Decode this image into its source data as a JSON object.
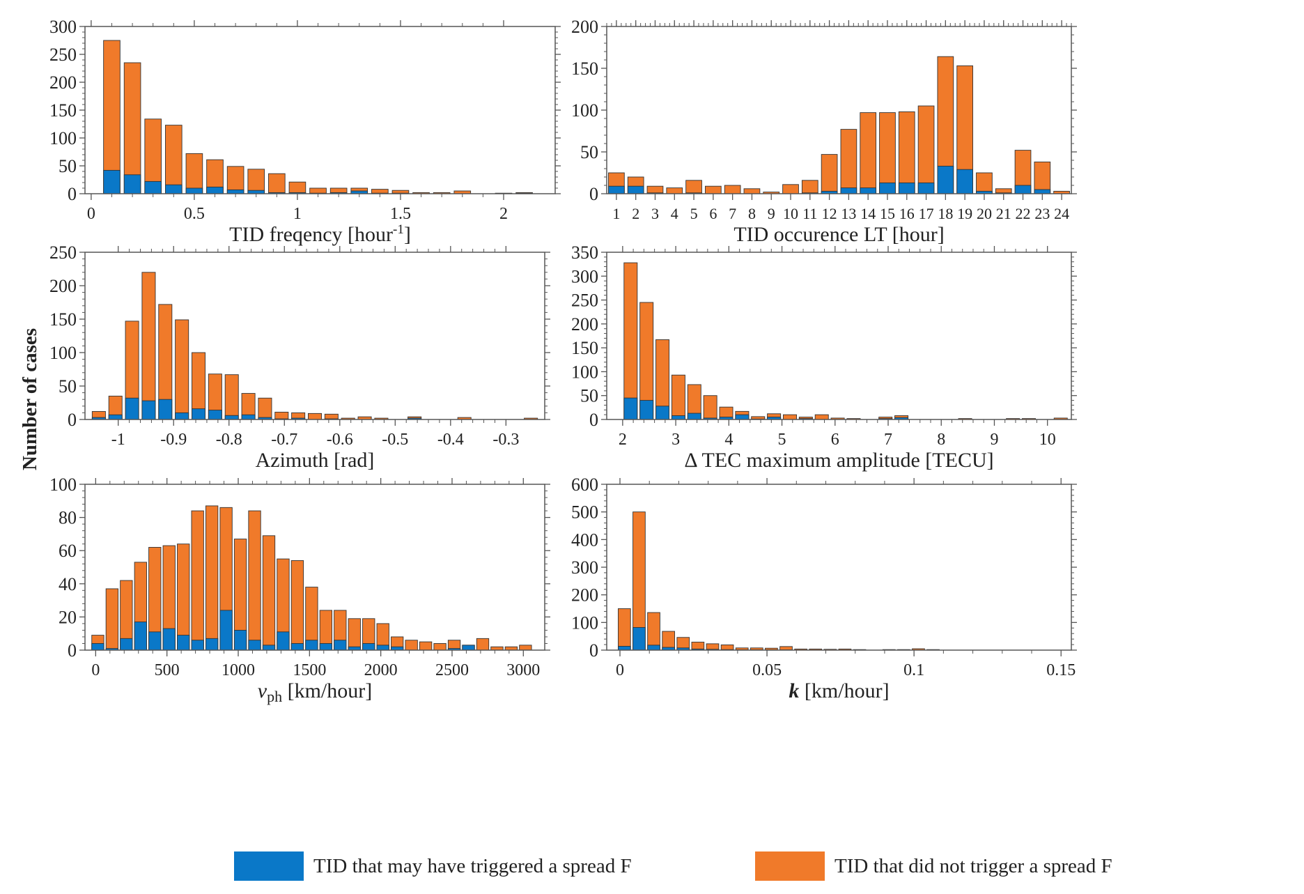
{
  "colors": {
    "spread_f": "#0a78c8",
    "no_spread_f": "#f07a2a",
    "axis": "#555555"
  },
  "ylabel": "Number of cases",
  "legend": {
    "triggered": "TID that may have triggered a spread F",
    "not_triggered": "TID that did not trigger a spread F"
  },
  "chart_data": [
    {
      "type": "bar",
      "stacked": true,
      "title": "",
      "xlabel": "TID freqency [hour",
      "xlabel_sup": "-1",
      "xlabel_end": "]",
      "xlim": [
        -0.03,
        2.25
      ],
      "ylim": [
        0,
        300
      ],
      "xticks": [
        0,
        0.5,
        1,
        1.5,
        2
      ],
      "xtick_labels": [
        "0",
        "0.5",
        "1",
        "1.5",
        "2"
      ],
      "yticks": [
        0,
        50,
        100,
        150,
        200,
        250,
        300
      ],
      "bar_width": 0.08,
      "x": [
        0.1,
        0.2,
        0.3,
        0.4,
        0.5,
        0.6,
        0.7,
        0.8,
        0.9,
        1.0,
        1.1,
        1.2,
        1.3,
        1.4,
        1.5,
        1.6,
        1.7,
        1.8,
        2.0,
        2.1
      ],
      "series": [
        {
          "name": "TID that may have triggered a spread F",
          "values": [
            42,
            34,
            22,
            16,
            10,
            12,
            7,
            6,
            2,
            2,
            1,
            2,
            5,
            1,
            1,
            0,
            0,
            0,
            0,
            1
          ]
        },
        {
          "name": "TID that did not trigger a spread F",
          "values": [
            233,
            201,
            112,
            107,
            62,
            49,
            42,
            38,
            34,
            19,
            9,
            8,
            5,
            7,
            5,
            2,
            2,
            5,
            1,
            1
          ]
        }
      ]
    },
    {
      "type": "bar",
      "stacked": true,
      "title": "",
      "xlabel": "TID occurence LT [hour]",
      "xlim": [
        0.5,
        24.5
      ],
      "ylim": [
        0,
        200
      ],
      "xticks": [
        1,
        2,
        3,
        4,
        5,
        6,
        7,
        8,
        9,
        10,
        11,
        12,
        13,
        14,
        15,
        16,
        17,
        18,
        19,
        20,
        21,
        22,
        23,
        24
      ],
      "xtick_labels": [
        "1",
        "2",
        "3",
        "4",
        "5",
        "6",
        "7",
        "8",
        "9",
        "10",
        "11",
        "12",
        "13",
        "14",
        "15",
        "16",
        "17",
        "18",
        "19",
        "20",
        "21",
        "22",
        "23",
        "24"
      ],
      "yticks": [
        0,
        50,
        100,
        150,
        200
      ],
      "bar_width": 0.82,
      "x": [
        1,
        2,
        3,
        4,
        5,
        6,
        7,
        8,
        9,
        10,
        11,
        12,
        13,
        14,
        15,
        16,
        17,
        18,
        19,
        20,
        21,
        22,
        23,
        24
      ],
      "series": [
        {
          "name": "TID that may have triggered a spread F",
          "values": [
            9,
            9,
            1,
            0,
            1,
            0,
            0,
            0,
            0,
            0,
            1,
            3,
            7,
            7,
            13,
            13,
            13,
            33,
            29,
            3,
            1,
            10,
            5,
            0
          ]
        },
        {
          "name": "TID that did not trigger a spread F",
          "values": [
            16,
            11,
            8,
            7,
            15,
            9,
            10,
            6,
            2,
            11,
            15,
            44,
            70,
            90,
            84,
            85,
            92,
            131,
            124,
            22,
            5,
            42,
            33,
            3
          ]
        }
      ]
    },
    {
      "type": "bar",
      "stacked": true,
      "title": "",
      "xlabel": "Azimuth [rad]",
      "xlim": [
        -1.06,
        -0.23
      ],
      "ylim": [
        0,
        250
      ],
      "xticks": [
        -1,
        -0.9,
        -0.8,
        -0.7,
        -0.6,
        -0.5,
        -0.4,
        -0.3
      ],
      "xtick_labels": [
        "-1",
        "-0.9",
        "-0.8",
        "-0.7",
        "-0.6",
        "-0.5",
        "-0.4",
        "-0.3"
      ],
      "yticks": [
        0,
        50,
        100,
        150,
        200,
        250
      ],
      "bar_width": 0.024,
      "x": [
        -1.035,
        -1.005,
        -0.975,
        -0.945,
        -0.915,
        -0.885,
        -0.855,
        -0.825,
        -0.795,
        -0.765,
        -0.735,
        -0.705,
        -0.675,
        -0.645,
        -0.615,
        -0.585,
        -0.555,
        -0.525,
        -0.465,
        -0.375,
        -0.255
      ],
      "series": [
        {
          "name": "TID that may have triggered a spread F",
          "values": [
            3,
            7,
            32,
            28,
            30,
            10,
            16,
            14,
            6,
            7,
            3,
            1,
            2,
            0,
            1,
            0,
            0,
            0,
            2,
            0,
            0
          ]
        },
        {
          "name": "TID that did not trigger a spread F",
          "values": [
            9,
            28,
            115,
            192,
            142,
            139,
            84,
            54,
            61,
            32,
            29,
            10,
            8,
            9,
            7,
            2,
            4,
            2,
            2,
            3,
            2
          ]
        }
      ]
    },
    {
      "type": "bar",
      "stacked": true,
      "title": "",
      "xlabel": "Δ TEC maximum amplitude [TECU]",
      "xlim": [
        1.7,
        10.45
      ],
      "ylim": [
        0,
        350
      ],
      "xticks": [
        2,
        3,
        4,
        5,
        6,
        7,
        8,
        9,
        10
      ],
      "xtick_labels": [
        "2",
        "3",
        "4",
        "5",
        "6",
        "7",
        "8",
        "9",
        "10"
      ],
      "yticks": [
        0,
        50,
        100,
        150,
        200,
        250,
        300,
        350
      ],
      "bar_width": 0.25,
      "x": [
        2.15,
        2.45,
        2.75,
        3.05,
        3.35,
        3.65,
        3.95,
        4.25,
        4.55,
        4.85,
        5.15,
        5.45,
        5.75,
        6.05,
        6.35,
        6.95,
        7.25,
        8.45,
        9.35,
        9.65,
        10.25
      ],
      "series": [
        {
          "name": "TID that may have triggered a spread F",
          "values": [
            45,
            40,
            28,
            8,
            13,
            3,
            5,
            10,
            1,
            5,
            0,
            2,
            0,
            0,
            0,
            2,
            4,
            0,
            0,
            0,
            0
          ]
        },
        {
          "name": "TID that did not trigger a spread F",
          "values": [
            283,
            205,
            139,
            85,
            60,
            47,
            21,
            7,
            5,
            7,
            10,
            3,
            10,
            3,
            2,
            3,
            4,
            2,
            2,
            2,
            3
          ]
        }
      ]
    },
    {
      "type": "bar",
      "stacked": true,
      "title": "",
      "xlabel": "v",
      "xlabel_sub": "ph",
      "xlabel_end": " [km/hour]",
      "xlim": [
        -75,
        3150
      ],
      "ylim": [
        0,
        100
      ],
      "xticks": [
        0,
        500,
        1000,
        1500,
        2000,
        2500,
        3000
      ],
      "xtick_labels": [
        "0",
        "500",
        "1000",
        "1500",
        "2000",
        "2500",
        "3000"
      ],
      "yticks": [
        0,
        20,
        40,
        60,
        80,
        100
      ],
      "bar_width": 85,
      "x": [
        15,
        115,
        215,
        315,
        415,
        515,
        615,
        715,
        815,
        915,
        1015,
        1115,
        1215,
        1315,
        1415,
        1515,
        1615,
        1715,
        1815,
        1915,
        2015,
        2115,
        2215,
        2315,
        2415,
        2515,
        2615,
        2715,
        2815,
        2915,
        3015
      ],
      "series": [
        {
          "name": "TID that may have triggered a spread F",
          "values": [
            4,
            1,
            7,
            17,
            11,
            13,
            9,
            6,
            7,
            24,
            12,
            6,
            3,
            11,
            4,
            6,
            4,
            6,
            2,
            4,
            3,
            2,
            0,
            0,
            0,
            1,
            3,
            0,
            0,
            0,
            0
          ]
        },
        {
          "name": "TID that did not trigger a spread F",
          "values": [
            5,
            36,
            35,
            36,
            51,
            50,
            55,
            78,
            80,
            62,
            55,
            78,
            66,
            44,
            50,
            32,
            20,
            18,
            17,
            15,
            13,
            6,
            6,
            5,
            4,
            5,
            0,
            7,
            2,
            2,
            3
          ]
        }
      ]
    },
    {
      "type": "bar",
      "stacked": true,
      "title": "",
      "xlabel": "k",
      "xlabel_end": " [km/hour]",
      "xlim": [
        -0.0045,
        0.1535
      ],
      "ylim": [
        0,
        600
      ],
      "xticks": [
        0,
        0.05,
        0.1,
        0.15
      ],
      "xtick_labels": [
        "0",
        "0.05",
        "0.1",
        "0.15"
      ],
      "yticks": [
        0,
        100,
        200,
        300,
        400,
        500,
        600
      ],
      "bar_width": 0.0042,
      "x": [
        0.0015,
        0.0065,
        0.0115,
        0.0165,
        0.0215,
        0.0265,
        0.0315,
        0.0365,
        0.0415,
        0.0465,
        0.0515,
        0.0565,
        0.0615,
        0.0665,
        0.0715,
        0.0765,
        0.0815,
        0.0915,
        0.0965,
        0.1015,
        0.1065
      ],
      "series": [
        {
          "name": "TID that may have triggered a spread F",
          "values": [
            14,
            82,
            18,
            10,
            8,
            4,
            3,
            2,
            1,
            1,
            1,
            1,
            0,
            0,
            0,
            0,
            0,
            0,
            0,
            0,
            0
          ]
        },
        {
          "name": "TID that did not trigger a spread F",
          "values": [
            136,
            418,
            118,
            58,
            38,
            25,
            20,
            17,
            7,
            7,
            6,
            12,
            4,
            4,
            3,
            4,
            2,
            2,
            2,
            5,
            2
          ]
        }
      ]
    }
  ]
}
